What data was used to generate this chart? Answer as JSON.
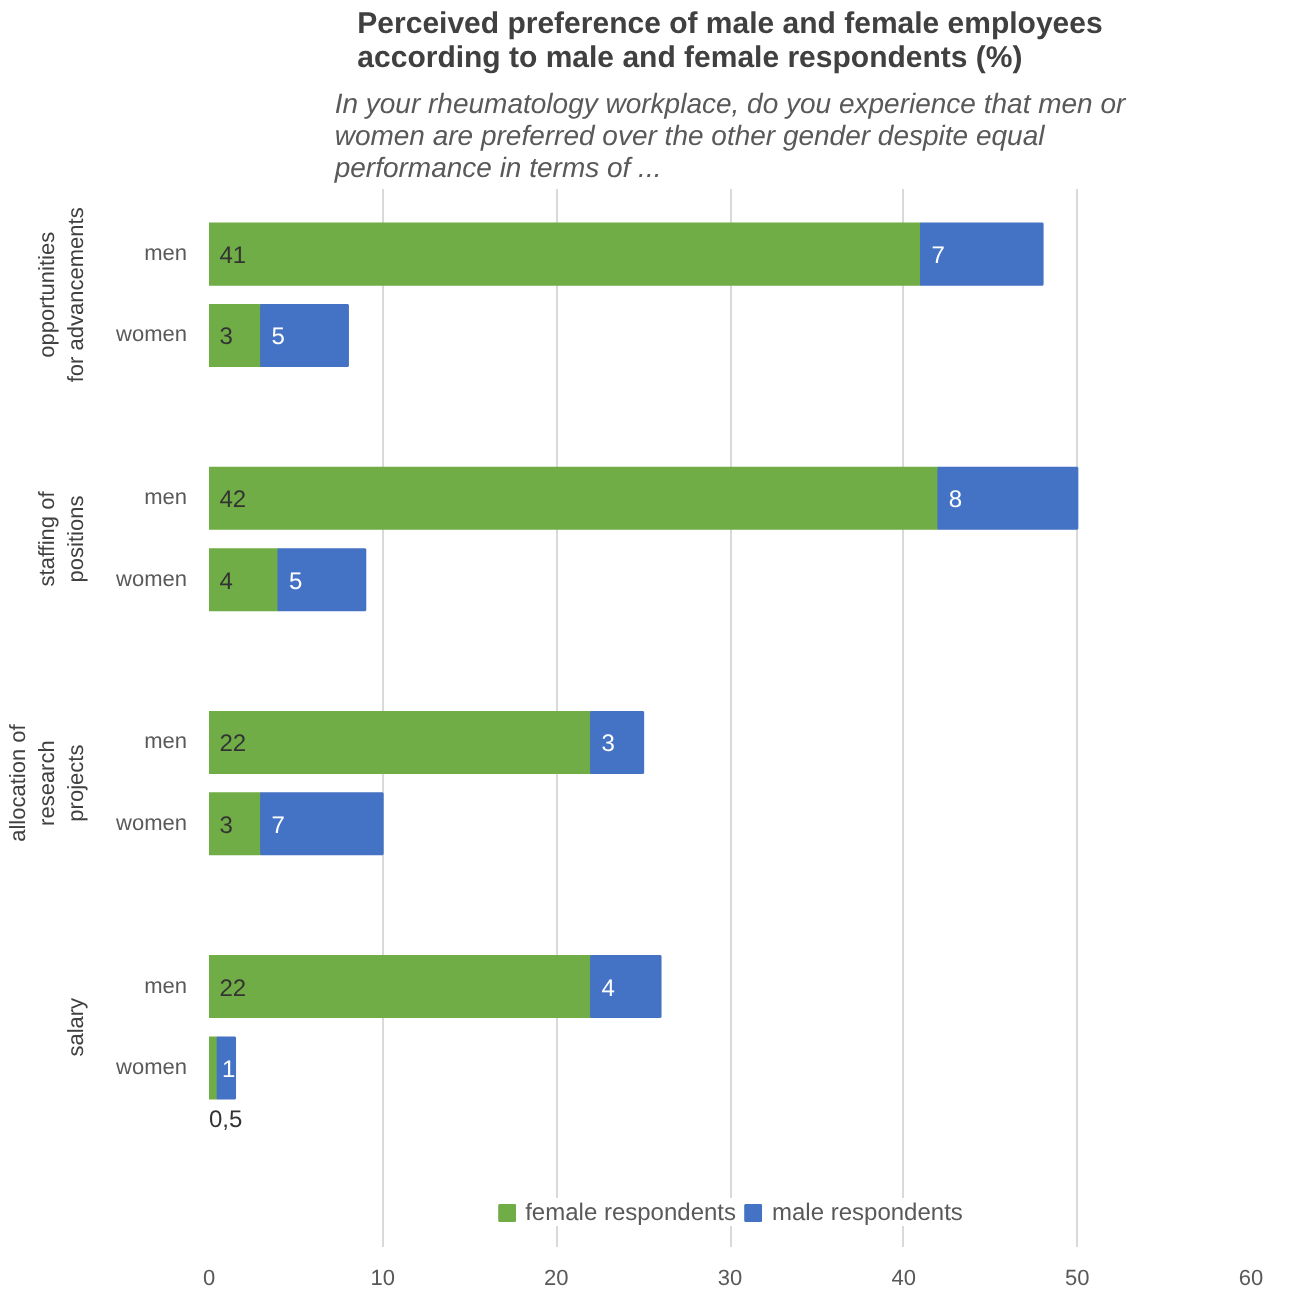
{
  "chart_data": {
    "type": "bar",
    "orientation": "horizontal",
    "stacked": true,
    "title": "Perceived preference of male and female employees according to male and female respondents (%)",
    "subtitle": "In your rheumatology workplace, do you experience that men or women are preferred over the other gender despite equal performance in terms of ...",
    "categories": [
      "men",
      "women",
      "men",
      "women",
      "men",
      "women",
      "men",
      "women"
    ],
    "annotations": [
      "opportunities for advancements",
      "staffing of positions",
      "allocation of research projects",
      "salary"
    ],
    "series": [
      {
        "name": "female respondents",
        "color": "#70ad47",
        "values": [
          41,
          3,
          42,
          4,
          22,
          3,
          22,
          0.5
        ],
        "value_labels": [
          "41",
          "3",
          "42",
          "4",
          "22",
          "3",
          "22",
          "0,5"
        ]
      },
      {
        "name": "male respondents",
        "color": "#4472c4",
        "values": [
          7,
          5,
          8,
          5,
          3,
          7,
          4,
          1
        ],
        "value_labels": [
          "7",
          "5",
          "8",
          "5",
          "3",
          "7",
          "4",
          "1"
        ]
      }
    ],
    "xlim": [
      0,
      60
    ],
    "xticks": [
      0,
      10,
      20,
      30,
      40,
      50,
      60
    ],
    "grid": "x",
    "legend": "bottom"
  }
}
